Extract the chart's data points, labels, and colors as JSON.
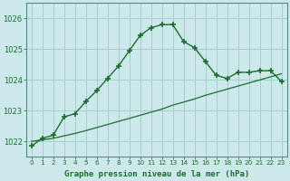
{
  "title": "Graphe pression niveau de la mer (hPa)",
  "background_color": "#cce8ea",
  "grid_color": "#99cccc",
  "line_color": "#1a6e2a",
  "xlim": [
    -0.5,
    23.5
  ],
  "ylim": [
    1021.5,
    1026.5
  ],
  "yticks": [
    1022,
    1023,
    1024,
    1025,
    1026
  ],
  "xticks": [
    0,
    1,
    2,
    3,
    4,
    5,
    6,
    7,
    8,
    9,
    10,
    11,
    12,
    13,
    14,
    15,
    16,
    17,
    18,
    19,
    20,
    21,
    22,
    23
  ],
  "series1": [
    1021.85,
    1022.1,
    1022.2,
    1022.8,
    1022.9,
    1023.3,
    1023.65,
    1024.05,
    1024.45,
    1024.95,
    1025.45,
    1025.7,
    1025.8,
    1025.8,
    1025.25,
    1025.05,
    1024.6,
    1024.15,
    1024.05,
    1024.25,
    1024.25,
    1024.3,
    1024.3,
    1023.95
  ],
  "series2": [
    1022.0,
    1022.05,
    1022.1,
    1022.18,
    1022.26,
    1022.35,
    1022.45,
    1022.55,
    1022.65,
    1022.75,
    1022.85,
    1022.95,
    1023.05,
    1023.18,
    1023.28,
    1023.38,
    1023.5,
    1023.6,
    1023.7,
    1023.8,
    1023.9,
    1024.0,
    1024.1,
    1024.2
  ]
}
